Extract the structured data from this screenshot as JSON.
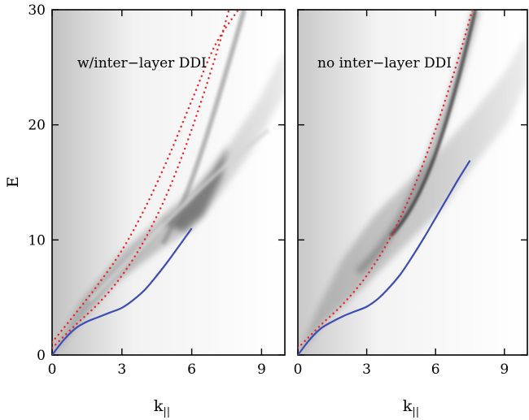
{
  "chart_data": [
    {
      "type": "line",
      "panel": "left",
      "annotation": "w/inter−layer DDI",
      "xlabel": "k",
      "xlabel_subscript": "||",
      "ylabel": "E",
      "xlim": [
        0,
        10
      ],
      "ylim": [
        0,
        30
      ],
      "xticks": [
        0,
        3,
        6,
        9
      ],
      "yticks": [
        0,
        10,
        20,
        30
      ],
      "background": "heatmap",
      "heatmap_color": "grayscale",
      "series": [
        {
          "style": "solid",
          "color": "#3b4db5",
          "x": [
            0,
            0.5,
            1,
            1.5,
            2,
            2.5,
            3,
            3.5,
            4,
            4.5,
            5,
            5.5,
            6
          ],
          "y": [
            0,
            1.3,
            2.3,
            2.9,
            3.3,
            3.7,
            4.1,
            4.8,
            5.7,
            6.9,
            8.2,
            9.6,
            11.0
          ]
        },
        {
          "style": "dotted",
          "color": "#e8262a",
          "x": [
            0,
            1,
            2,
            3,
            4,
            5,
            6,
            7,
            7.6
          ],
          "y": [
            0.6,
            2.6,
            4.5,
            6.9,
            10.1,
            14.3,
            19.6,
            25.8,
            30
          ]
        },
        {
          "style": "dotted",
          "color": "#e8262a",
          "x": [
            0,
            1,
            2,
            3,
            4,
            5,
            6,
            7,
            8
          ],
          "y": [
            1.1,
            3.6,
            6.2,
            9.1,
            12.8,
            17.2,
            22.1,
            26.9,
            30
          ]
        }
      ]
    },
    {
      "type": "line",
      "panel": "right",
      "annotation": "no inter−layer DDI",
      "xlabel": "k",
      "xlabel_subscript": "||",
      "xlim": [
        0,
        10
      ],
      "ylim": [
        0,
        30
      ],
      "xticks": [
        0,
        3,
        6,
        9
      ],
      "background": "heatmap",
      "heatmap_color": "grayscale",
      "series": [
        {
          "style": "solid",
          "color": "#3b4db5",
          "x": [
            0,
            0.5,
            1,
            1.5,
            2,
            2.5,
            3,
            3.5,
            4,
            4.5,
            5,
            5.5,
            6,
            6.5,
            7,
            7.5
          ],
          "y": [
            0,
            1.3,
            2.3,
            2.9,
            3.4,
            3.8,
            4.2,
            4.9,
            5.9,
            7.1,
            8.6,
            10.2,
            11.9,
            13.6,
            15.3,
            16.9
          ]
        },
        {
          "style": "dotted",
          "color": "#e8262a",
          "x": [
            0,
            1,
            2,
            3,
            4,
            5,
            6,
            7,
            7.6
          ],
          "y": [
            0.6,
            2.6,
            4.5,
            6.9,
            10.1,
            14.3,
            19.6,
            25.8,
            30
          ]
        }
      ]
    }
  ]
}
